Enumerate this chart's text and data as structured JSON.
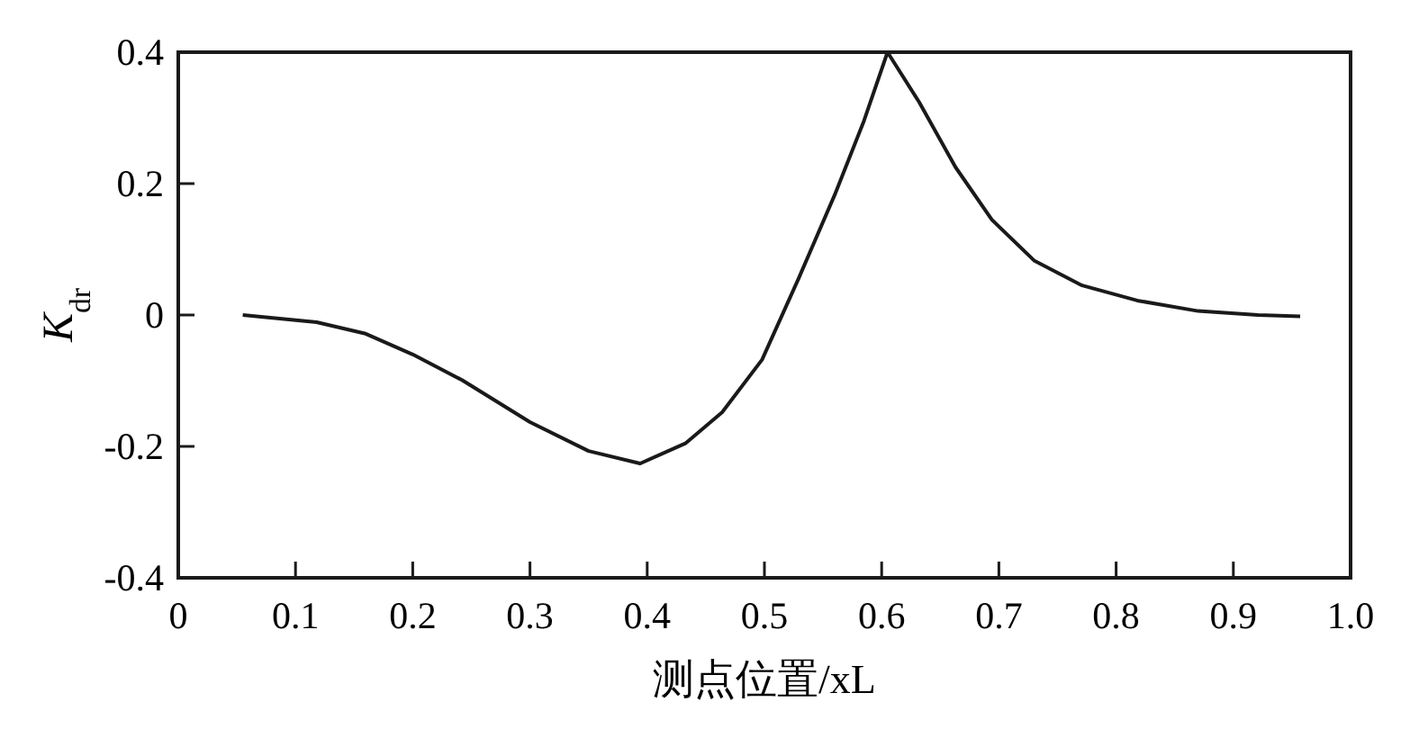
{
  "chart_data": {
    "type": "line",
    "xlabel": "测点位置/xL",
    "ylabel": "K$_{dr}$",
    "xlim": [
      0,
      1.0
    ],
    "ylim": [
      -0.4,
      0.4
    ],
    "xticks": [
      0,
      0.1,
      0.2,
      0.3,
      0.4,
      0.5,
      0.6,
      0.7,
      0.8,
      0.9,
      {
        "value": 1.0,
        "label": "1.0"
      }
    ],
    "yticks": [
      -0.4,
      -0.2,
      0,
      0.2,
      0.4
    ],
    "grid": false,
    "line_style": "solid",
    "marker": "none",
    "series": [
      {
        "color": "#1a1a1a",
        "x": [
          0.055,
          0.118,
          0.159,
          0.2,
          0.242,
          0.3,
          0.35,
          0.394,
          0.433,
          0.464,
          0.498,
          0.529,
          0.56,
          0.585,
          0.605,
          0.632,
          0.663,
          0.694,
          0.73,
          0.771,
          0.818,
          0.87,
          0.921,
          0.957
        ],
        "values": [
          0,
          -0.011,
          -0.028,
          -0.06,
          -0.099,
          -0.163,
          -0.207,
          -0.226,
          -0.195,
          -0.148,
          -0.068,
          0.055,
          0.183,
          0.296,
          0.4,
          0.324,
          0.225,
          0.145,
          0.083,
          0.045,
          0.022,
          0.006,
          0,
          -0.002
        ]
      }
    ]
  }
}
